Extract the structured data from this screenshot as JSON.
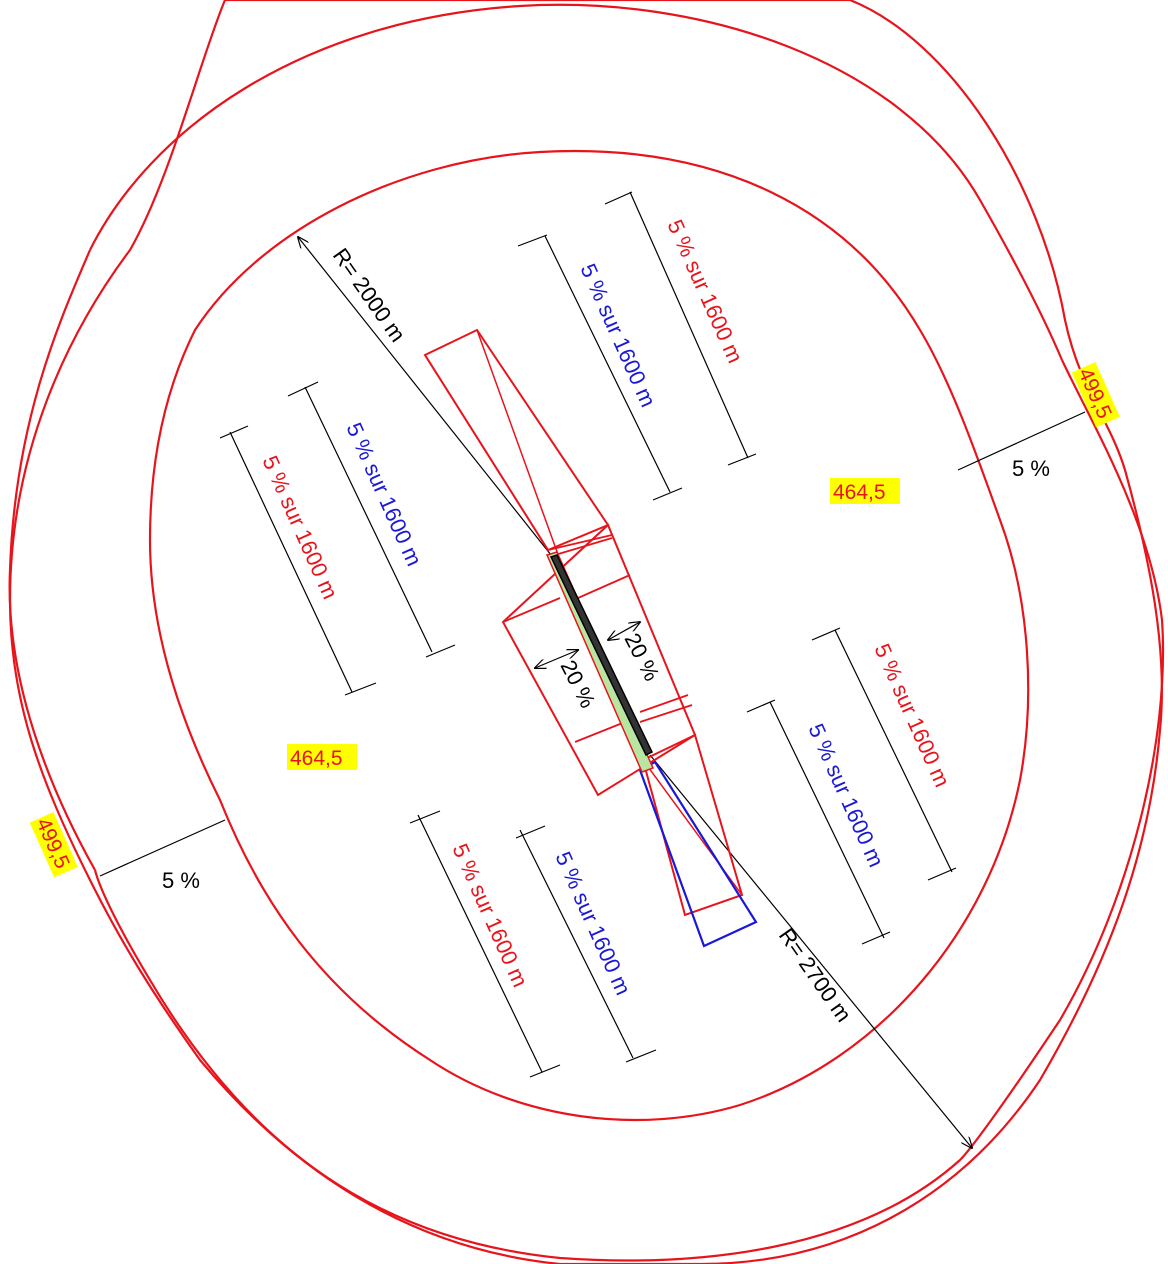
{
  "colors": {
    "limit": "#e8141c",
    "approach": "#1a18d6",
    "dimension": "#000000",
    "highlight": "#ffff00",
    "runway_strip": "#b8e6a0"
  },
  "radius_labels": {
    "inner": "R= 2000 m",
    "outer": "R= 2700 m"
  },
  "slope_labels": {
    "red_upper_right": "5 % sur 1600 m",
    "blue_upper_right": "5 % sur 1600 m",
    "red_left": "5 % sur 1600 m",
    "blue_left": "5 % sur 1600 m",
    "red_lower_right": "5 % sur  1600 m",
    "blue_lower_right": "5 % sur 1600 m",
    "red_bottom": "5 % sur 1600 m",
    "blue_bottom": "5 % sur 1600 m"
  },
  "transition_labels": {
    "right": "20 %",
    "left": "20 %"
  },
  "conical_labels": {
    "right": "5 %",
    "left": "5 %"
  },
  "elevations": {
    "inner_right": "464,5",
    "inner_left": "464,5",
    "outer_right": "499,5",
    "outer_left": "499,5"
  }
}
